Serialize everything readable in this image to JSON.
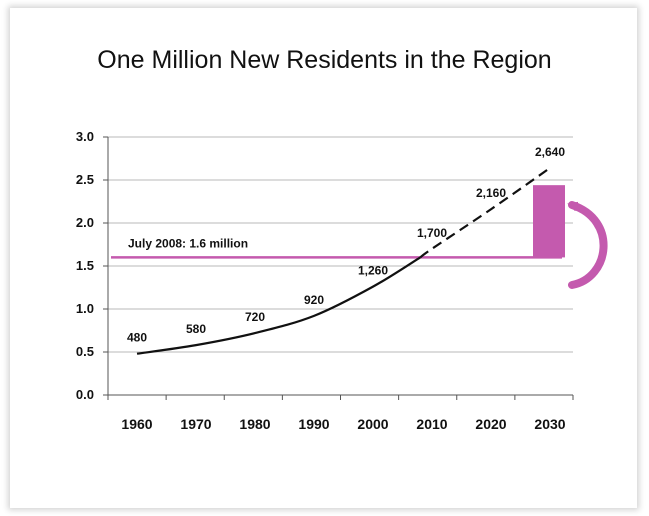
{
  "chart_data": {
    "type": "line",
    "title": "One Million New Residents in the Region",
    "xlabel": "",
    "ylabel": "",
    "ylim": [
      0,
      3.0
    ],
    "yticks": [
      "0.0",
      "0.5",
      "1.0",
      "1.5",
      "2.0",
      "2.5",
      "3.0"
    ],
    "categories": [
      "1960",
      "1970",
      "1980",
      "1990",
      "2000",
      "2010",
      "2020",
      "2030"
    ],
    "series": [
      {
        "x": [
          1960,
          1970,
          1980,
          1990,
          2000,
          2008
        ],
        "y": [
          0.48,
          0.58,
          0.72,
          0.92,
          1.26,
          1.6
        ],
        "style": "solid"
      },
      {
        "x": [
          2008,
          2010,
          2020,
          2030
        ],
        "y": [
          1.6,
          1.7,
          2.16,
          2.64
        ],
        "style": "dashed"
      }
    ],
    "data_labels": [
      {
        "x": 1960,
        "y": 0.48,
        "text": "480"
      },
      {
        "x": 1970,
        "y": 0.58,
        "text": "580"
      },
      {
        "x": 1980,
        "y": 0.72,
        "text": "720"
      },
      {
        "x": 1990,
        "y": 0.92,
        "text": "920"
      },
      {
        "x": 2000,
        "y": 1.26,
        "text": "1,260"
      },
      {
        "x": 2010,
        "y": 1.7,
        "text": "1,700"
      },
      {
        "x": 2020,
        "y": 2.16,
        "text": "2,160"
      },
      {
        "x": 2030,
        "y": 2.64,
        "text": "2,640"
      }
    ],
    "reference_line": {
      "y": 1.6,
      "label": "July 2008:  1.6 million"
    },
    "highlight_bar": {
      "x": 2030,
      "y_from": 1.6,
      "y_to": 2.44
    },
    "grid": true,
    "colors": {
      "accent": "#c45aae",
      "line": "#111111",
      "grid": "#b8b8b8"
    }
  }
}
